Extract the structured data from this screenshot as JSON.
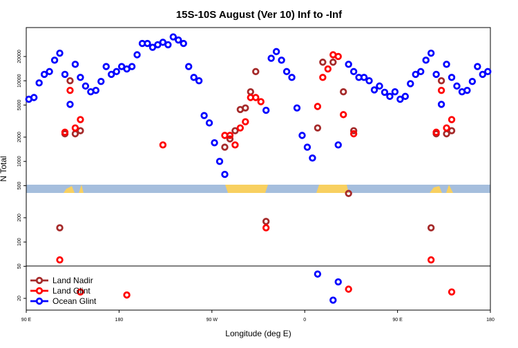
{
  "chart_data": {
    "type": "scatter",
    "title": "15S-10S August (Ver 10)   Inf to -Inf",
    "x_label": "Longitude (deg E)",
    "y_label": "N Total",
    "xlim": [
      90,
      540
    ],
    "xticks": [
      {
        "value": 90,
        "label": "90 E"
      },
      {
        "value": 180,
        "label": "180"
      },
      {
        "value": 270,
        "label": "90 W"
      },
      {
        "value": 360,
        "label": "0"
      },
      {
        "value": 450,
        "label": "90 E"
      },
      {
        "value": 540,
        "label": "180"
      }
    ],
    "ylim": [
      14.3,
      45700
    ],
    "yticks": [
      20,
      50,
      100,
      200,
      500,
      1000,
      2000,
      5000,
      10000,
      20000
    ],
    "y_scale": "log",
    "legend": "lower left",
    "series": [
      {
        "name": "Land Nadir",
        "color": "#a52a2a",
        "x": [
          132.5,
          127.5,
          137.5,
          142.5,
          122.5,
          282.5,
          287.5,
          292.5,
          297.5,
          302.5,
          307.5,
          312.5,
          322.5,
          372.5,
          377.5,
          387.5,
          397.5,
          407.5,
          402.5,
          492.5,
          487.5,
          497.5,
          502.5,
          482.5
        ],
        "values": [
          10000,
          2200,
          2200,
          2400,
          150,
          1500,
          1900,
          2400,
          4400,
          4600,
          7300,
          13000,
          180,
          2600,
          17000,
          17000,
          7300,
          2400,
          400,
          10000,
          2200,
          2200,
          2400,
          150
        ]
      },
      {
        "name": "Land Glint",
        "color": "#ff0000",
        "x": [
          132.5,
          127.5,
          137.5,
          142.5,
          122.5,
          222.5,
          187.5,
          142.5,
          282.5,
          287.5,
          292.5,
          297.5,
          302.5,
          307.5,
          312.5,
          317.5,
          322.5,
          372.5,
          377.5,
          382.5,
          387.5,
          392.5,
          397.5,
          407.5,
          402.5,
          492.5,
          487.5,
          497.5,
          502.5,
          482.5,
          502.5
        ],
        "values": [
          7600,
          2300,
          2600,
          3300,
          60,
          1600,
          22,
          24,
          2100,
          2100,
          1600,
          2600,
          3100,
          6200,
          6200,
          5500,
          150,
          4800,
          11000,
          14000,
          21000,
          20000,
          3800,
          2200,
          26,
          7600,
          2300,
          2600,
          3300,
          60,
          24
        ]
      },
      {
        "name": "Ocean Glint",
        "color": "#0000ff",
        "x": [
          92.5,
          97.5,
          102.5,
          107.5,
          112.5,
          117.5,
          122.5,
          127.5,
          132.5,
          137.5,
          142.5,
          147.5,
          152.5,
          157.5,
          162.5,
          167.5,
          172.5,
          177.5,
          182.5,
          187.5,
          192.5,
          197.5,
          202.5,
          207.5,
          212.5,
          217.5,
          222.5,
          227.5,
          232.5,
          237.5,
          242.5,
          247.5,
          252.5,
          257.5,
          262.5,
          267.5,
          272.5,
          277.5,
          282.5,
          322.5,
          327.5,
          332.5,
          337.5,
          342.5,
          347.5,
          352.5,
          357.5,
          362.5,
          367.5,
          392.5,
          402.5,
          407.5,
          412.5,
          417.5,
          422.5,
          427.5,
          432.5,
          437.5,
          442.5,
          447.5,
          452.5,
          457.5,
          462.5,
          467.5,
          472.5,
          477.5,
          482.5,
          487.5,
          492.5,
          497.5,
          502.5,
          507.5,
          512.5,
          517.5,
          522.5,
          527.5,
          532.5,
          537.5,
          372.5,
          392.5,
          387.5
        ],
        "values": [
          5900,
          6200,
          9400,
          12000,
          13000,
          18000,
          22000,
          12000,
          5100,
          16000,
          11000,
          8600,
          7300,
          7600,
          9800,
          15000,
          12000,
          13000,
          15000,
          14000,
          15000,
          21000,
          29000,
          29000,
          26000,
          28000,
          30000,
          28000,
          35000,
          32000,
          29000,
          15000,
          11000,
          10000,
          3700,
          3000,
          1700,
          1000,
          690,
          4300,
          19000,
          23000,
          18000,
          13000,
          11000,
          4600,
          2100,
          1500,
          1100,
          1600,
          16000,
          13000,
          11000,
          11000,
          10000,
          7700,
          8600,
          7200,
          6400,
          7300,
          5900,
          6400,
          9200,
          12000,
          13000,
          18000,
          22000,
          12000,
          5100,
          16000,
          11000,
          8600,
          7300,
          7600,
          9800,
          15000,
          12000,
          13000,
          40,
          32,
          19
        ]
      }
    ]
  }
}
